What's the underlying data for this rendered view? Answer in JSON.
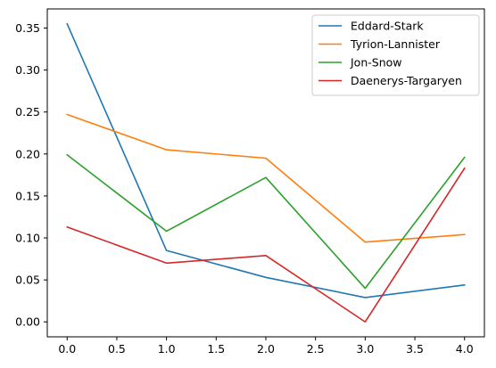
{
  "chart_data": {
    "type": "line",
    "title": "",
    "xlabel": "",
    "ylabel": "",
    "x": [
      0,
      1,
      2,
      3,
      4
    ],
    "xlim": [
      -0.2,
      4.2
    ],
    "ylim": [
      -0.0178,
      0.3728
    ],
    "xticks": [
      0.0,
      0.5,
      1.0,
      1.5,
      2.0,
      2.5,
      3.0,
      3.5,
      4.0
    ],
    "xtick_labels": [
      "0.0",
      "0.5",
      "1.0",
      "1.5",
      "2.0",
      "2.5",
      "3.0",
      "3.5",
      "4.0"
    ],
    "yticks": [
      0.0,
      0.05,
      0.1,
      0.15,
      0.2,
      0.25,
      0.3,
      0.35
    ],
    "ytick_labels": [
      "0.00",
      "0.05",
      "0.10",
      "0.15",
      "0.20",
      "0.25",
      "0.30",
      "0.35"
    ],
    "grid": false,
    "legend_position": "top-right",
    "series": [
      {
        "name": "Eddard-Stark",
        "color": "#1f77b4",
        "values": [
          0.355,
          0.085,
          0.053,
          0.029,
          0.044
        ]
      },
      {
        "name": "Tyrion-Lannister",
        "color": "#ff7f0e",
        "values": [
          0.247,
          0.205,
          0.195,
          0.095,
          0.104
        ]
      },
      {
        "name": "Jon-Snow",
        "color": "#2ca02c",
        "values": [
          0.199,
          0.108,
          0.172,
          0.04,
          0.196
        ]
      },
      {
        "name": "Daenerys-Targaryen",
        "color": "#d62728",
        "values": [
          0.113,
          0.07,
          0.079,
          0.0,
          0.183
        ]
      }
    ]
  }
}
